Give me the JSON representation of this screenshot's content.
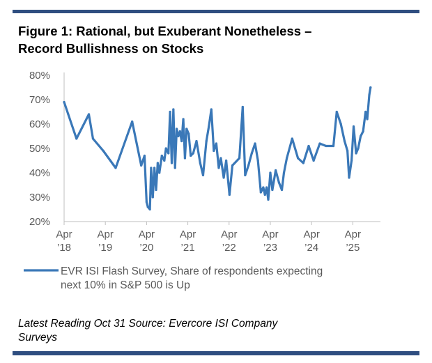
{
  "title_lines": [
    "Figure 1:  Rational, but Exuberant Nonetheless –",
    "Record Bullishness on Stocks"
  ],
  "source_lines": [
    "Latest Reading Oct 31 Source: Evercore ISI Company",
    "Surveys"
  ],
  "colors": {
    "line": "#3a78b8",
    "rule": "#2f4e80",
    "axis": "#bfbfbf",
    "text": "#595959"
  },
  "chart_data": {
    "type": "line",
    "title": "Figure 1: Rational, but Exuberant Nonetheless – Record Bullishness on Stocks",
    "xlabel": "",
    "ylabel": "",
    "ylim": [
      20,
      80
    ],
    "y_ticks": [
      "20%",
      "30%",
      "40%",
      "50%",
      "60%",
      "70%",
      "80%"
    ],
    "x_ticks": [
      {
        "line1": "Apr",
        "line2": "’18",
        "t": 2018.25
      },
      {
        "line1": "Apr",
        "line2": "’19",
        "t": 2019.25
      },
      {
        "line1": "Apr",
        "line2": "’20",
        "t": 2020.25
      },
      {
        "line1": "Apr",
        "line2": "’21",
        "t": 2021.25
      },
      {
        "line1": "Apr",
        "line2": "’22",
        "t": 2022.25
      },
      {
        "line1": "Apr",
        "line2": "’23",
        "t": 2023.25
      },
      {
        "line1": "Apr",
        "line2": "’24",
        "t": 2024.25
      },
      {
        "line1": "Apr",
        "line2": "’25",
        "t": 2025.25
      }
    ],
    "xlim": [
      2018.25,
      2025.92
    ],
    "grid": false,
    "legend_position": "bottom",
    "series": [
      {
        "name": "EVR ISI Flash Survey, Share of respondents  expecting next 10% in S&P 500 is Up",
        "legend_lines": [
          "EVR ISI Flash Survey, Share of respondents  expecting",
          "next 10% in S&P 500 is Up"
        ],
        "points": [
          [
            2018.25,
            69
          ],
          [
            2018.35,
            64
          ],
          [
            2018.55,
            54
          ],
          [
            2018.85,
            64
          ],
          [
            2018.95,
            54
          ],
          [
            2019.2,
            49
          ],
          [
            2019.5,
            42
          ],
          [
            2019.9,
            61
          ],
          [
            2020.12,
            43
          ],
          [
            2020.2,
            47
          ],
          [
            2020.25,
            28
          ],
          [
            2020.28,
            26
          ],
          [
            2020.33,
            25
          ],
          [
            2020.36,
            42
          ],
          [
            2020.4,
            30
          ],
          [
            2020.44,
            42
          ],
          [
            2020.48,
            33
          ],
          [
            2020.52,
            44
          ],
          [
            2020.56,
            40
          ],
          [
            2020.62,
            47
          ],
          [
            2020.68,
            45
          ],
          [
            2020.72,
            50
          ],
          [
            2020.78,
            48
          ],
          [
            2020.82,
            65
          ],
          [
            2020.86,
            44
          ],
          [
            2020.9,
            66
          ],
          [
            2020.94,
            42
          ],
          [
            2020.98,
            58
          ],
          [
            2021.02,
            55
          ],
          [
            2021.06,
            57
          ],
          [
            2021.1,
            53
          ],
          [
            2021.14,
            62
          ],
          [
            2021.18,
            46
          ],
          [
            2021.22,
            58
          ],
          [
            2021.27,
            56
          ],
          [
            2021.32,
            47
          ],
          [
            2021.38,
            48
          ],
          [
            2021.46,
            53
          ],
          [
            2021.55,
            44
          ],
          [
            2021.62,
            39
          ],
          [
            2021.7,
            53
          ],
          [
            2021.76,
            59
          ],
          [
            2021.82,
            66
          ],
          [
            2021.88,
            49
          ],
          [
            2021.94,
            52
          ],
          [
            2022.0,
            42
          ],
          [
            2022.05,
            46
          ],
          [
            2022.12,
            38
          ],
          [
            2022.18,
            45
          ],
          [
            2022.26,
            31
          ],
          [
            2022.33,
            43
          ],
          [
            2022.5,
            46
          ],
          [
            2022.58,
            67
          ],
          [
            2022.64,
            39
          ],
          [
            2022.72,
            43
          ],
          [
            2022.8,
            48
          ],
          [
            2022.88,
            52
          ],
          [
            2022.95,
            45
          ],
          [
            2023.02,
            32
          ],
          [
            2023.08,
            34
          ],
          [
            2023.12,
            31
          ],
          [
            2023.16,
            34
          ],
          [
            2023.2,
            29
          ],
          [
            2023.25,
            40
          ],
          [
            2023.3,
            33
          ],
          [
            2023.38,
            41
          ],
          [
            2023.46,
            36
          ],
          [
            2023.53,
            33
          ],
          [
            2023.58,
            40
          ],
          [
            2023.65,
            46
          ],
          [
            2023.78,
            54
          ],
          [
            2023.92,
            46
          ],
          [
            2024.05,
            44
          ],
          [
            2024.18,
            51
          ],
          [
            2024.3,
            45
          ],
          [
            2024.45,
            52
          ],
          [
            2024.6,
            51
          ],
          [
            2024.78,
            51
          ],
          [
            2024.86,
            65
          ],
          [
            2024.96,
            60
          ],
          [
            2025.05,
            53
          ],
          [
            2025.12,
            49
          ],
          [
            2025.16,
            38
          ],
          [
            2025.22,
            45
          ],
          [
            2025.27,
            59
          ],
          [
            2025.33,
            48
          ],
          [
            2025.38,
            50
          ],
          [
            2025.44,
            55
          ],
          [
            2025.5,
            57
          ],
          [
            2025.56,
            65
          ],
          [
            2025.6,
            62
          ],
          [
            2025.65,
            72
          ],
          [
            2025.68,
            75
          ]
        ]
      }
    ]
  }
}
